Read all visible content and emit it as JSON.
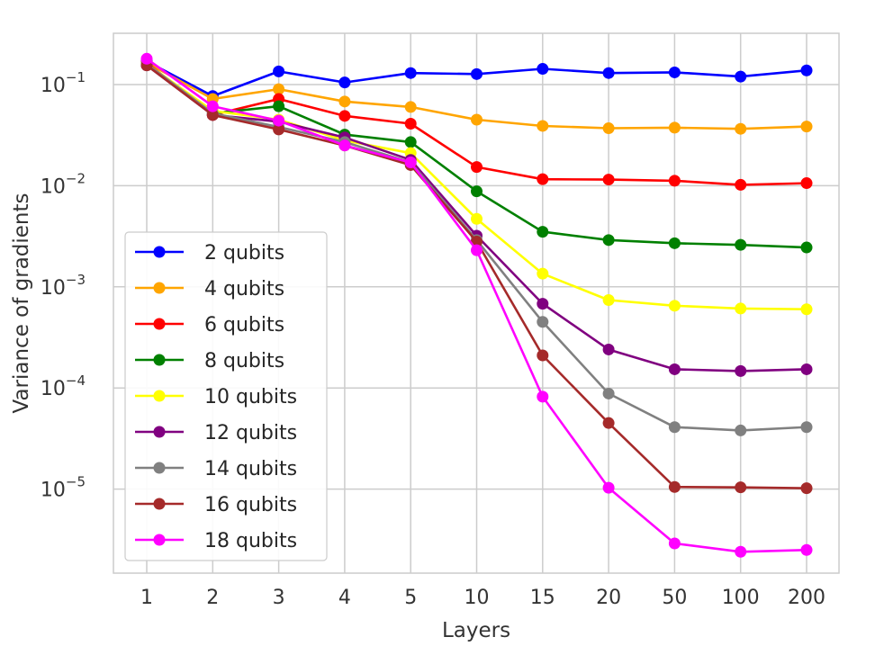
{
  "chart_data": {
    "type": "line",
    "xlabel": "Layers",
    "ylabel": "Variance of gradients",
    "yscale": "log",
    "ylim": [
      1.4e-06,
      0.4
    ],
    "grid": true,
    "legend_position": "lower-left",
    "categories": [
      "1",
      "2",
      "3",
      "4",
      "5",
      "10",
      "15",
      "20",
      "50",
      "100",
      "200"
    ],
    "yticks": [
      {
        "value": 0.1,
        "base": "10",
        "exp": "−1"
      },
      {
        "value": 0.01,
        "base": "10",
        "exp": "−2"
      },
      {
        "value": 0.001,
        "base": "10",
        "exp": "−3"
      },
      {
        "value": 0.0001,
        "base": "10",
        "exp": "−4"
      },
      {
        "value": 1e-05,
        "base": "10",
        "exp": "−5"
      }
    ],
    "series": [
      {
        "name": "2 qubits",
        "color": "#0000ff",
        "values": [
          0.17,
          0.077,
          0.135,
          0.105,
          0.13,
          0.127,
          0.143,
          0.13,
          0.132,
          0.12,
          0.138
        ]
      },
      {
        "name": "4 qubits",
        "color": "#ffa500",
        "values": [
          0.165,
          0.072,
          0.09,
          0.068,
          0.06,
          0.045,
          0.039,
          0.037,
          0.0375,
          0.0365,
          0.0385
        ]
      },
      {
        "name": "6 qubits",
        "color": "#ff0000",
        "values": [
          0.165,
          0.05,
          0.072,
          0.049,
          0.041,
          0.0153,
          0.0116,
          0.0115,
          0.0112,
          0.0102,
          0.0106
        ]
      },
      {
        "name": "8 qubits",
        "color": "#008000",
        "values": [
          0.16,
          0.052,
          0.061,
          0.032,
          0.027,
          0.0088,
          0.0035,
          0.0029,
          0.0027,
          0.0026,
          0.00245
        ]
      },
      {
        "name": "10 qubits",
        "color": "#ffff00",
        "values": [
          0.16,
          0.055,
          0.045,
          0.028,
          0.021,
          0.0047,
          0.00135,
          0.00074,
          0.00065,
          0.00061,
          0.0006
        ]
      },
      {
        "name": "12 qubits",
        "color": "#800080",
        "values": [
          0.155,
          0.05,
          0.043,
          0.03,
          0.018,
          0.0032,
          0.00068,
          0.00024,
          0.000153,
          0.000147,
          0.000153
        ]
      },
      {
        "name": "14 qubits",
        "color": "#808080",
        "values": [
          0.16,
          0.052,
          0.038,
          0.027,
          0.017,
          0.0029,
          0.00045,
          8.8e-05,
          4.1e-05,
          3.8e-05,
          4.1e-05
        ]
      },
      {
        "name": "16 qubits",
        "color": "#a52a2a",
        "values": [
          0.155,
          0.05,
          0.036,
          0.025,
          0.016,
          0.0028,
          0.00021,
          4.5e-05,
          1.05e-05,
          1.04e-05,
          1.02e-05
        ]
      },
      {
        "name": "18 qubits",
        "color": "#ff00ff",
        "values": [
          0.18,
          0.061,
          0.044,
          0.025,
          0.017,
          0.0023,
          8.2e-05,
          1.03e-05,
          2.9e-06,
          2.4e-06,
          2.5e-06
        ]
      }
    ]
  }
}
